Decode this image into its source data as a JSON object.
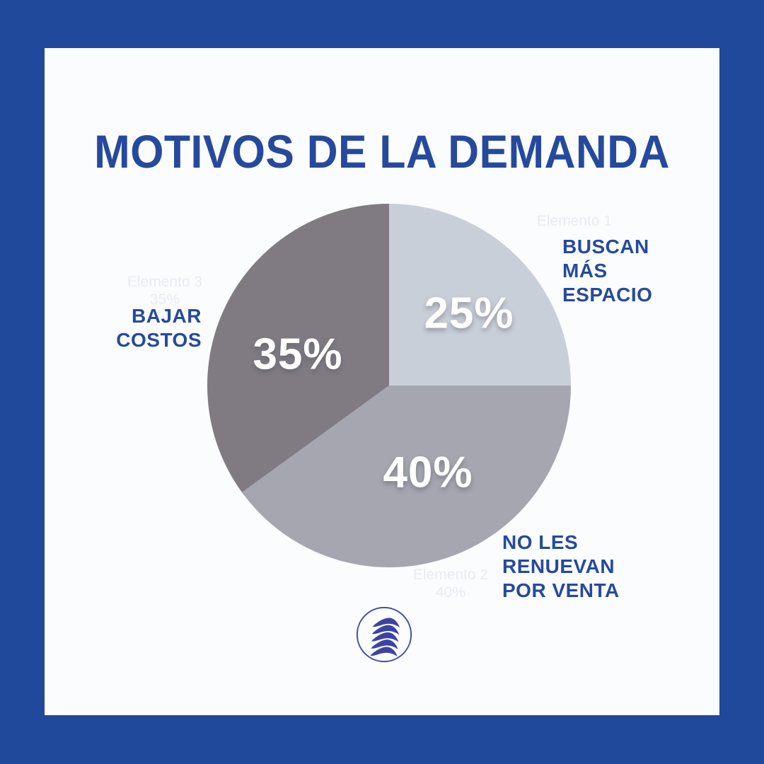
{
  "theme": {
    "border_blue": "#21499B",
    "card_bg": "#FBFCFE",
    "text_blue": "#254A9D",
    "percent_white": "#FFFFFF",
    "ghost_gray": "#E9EBF2",
    "logo_blue": "#3C43A3",
    "logo_ring_blue": "#464CA8"
  },
  "title": "MOTIVOS DE LA DEMANDA",
  "chart_data": {
    "type": "pie",
    "title": "MOTIVOS DE LA DEMANDA",
    "direction": "clockwise",
    "start_angle_deg": 0,
    "data_labels": "inside-white-percent",
    "legend_position": "around-chart",
    "slices": [
      {
        "label": "BUSCAN MÁS ESPACIO",
        "value": 25,
        "percent_label": "25%",
        "color": "#C9CFD8"
      },
      {
        "label": "NO LES RENUEVAN POR VENTA",
        "value": 40,
        "percent_label": "40%",
        "color": "#A5A6B0"
      },
      {
        "label": "BAJAR COSTOS",
        "value": 35,
        "percent_label": "35%",
        "color": "#807B83"
      }
    ]
  },
  "slice_labels": {
    "buscan": {
      "lines": [
        "BUSCAN",
        "MÁS",
        "ESPACIO"
      ]
    },
    "bajar": {
      "lines": [
        "BAJAR",
        "COSTOS"
      ]
    },
    "renuevan": {
      "lines": [
        "NO LES",
        "RENUEVAN",
        "POR VENTA"
      ]
    }
  },
  "ghost_labels": {
    "g1": {
      "line1": "Elemento 1",
      "line2": ""
    },
    "g2": {
      "line1": "Elemento 2",
      "line2": "40%"
    },
    "g3": {
      "line1": "Elemento 3",
      "line2": "35%"
    }
  },
  "logo": {
    "icon": "stacked-swoosh-building-in-circle"
  }
}
